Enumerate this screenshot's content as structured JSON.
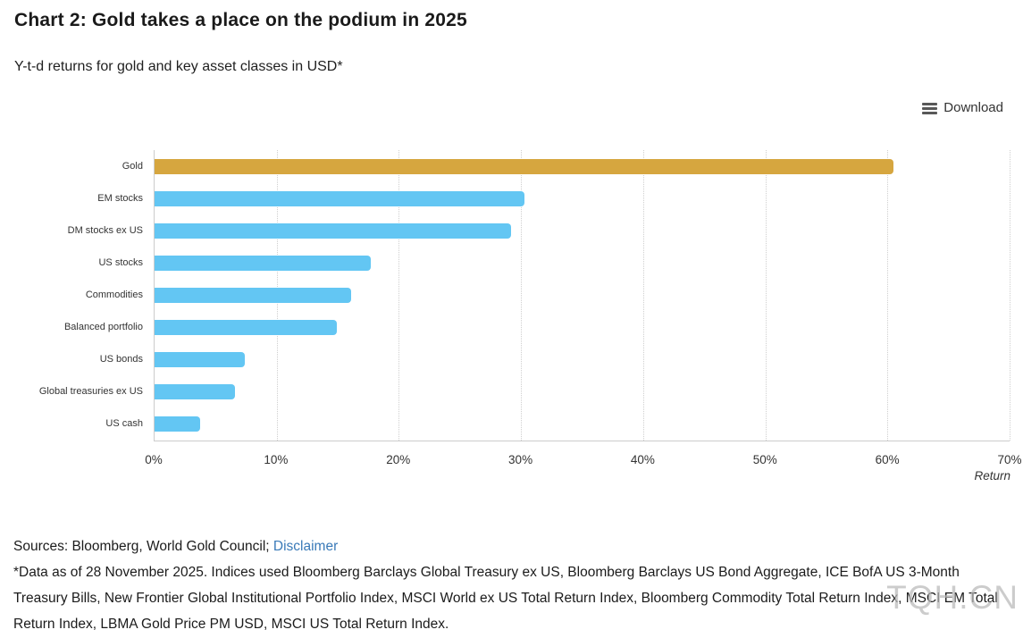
{
  "toolbar": {
    "download_label": "Download"
  },
  "chart_data": {
    "type": "bar",
    "orientation": "horizontal",
    "title": "Chart 2: Gold takes a place on the podium in 2025",
    "subtitle": "Y-t-d returns for gold and key asset classes in USD*",
    "categories": [
      "Gold",
      "EM stocks",
      "DM stocks ex US",
      "US stocks",
      "Commodities",
      "Balanced portfolio",
      "US bonds",
      "Global treasuries ex US",
      "US cash"
    ],
    "values": [
      60.5,
      30.3,
      29.2,
      17.7,
      16.1,
      14.9,
      7.4,
      6.6,
      3.7
    ],
    "unit": "%",
    "bar_colors": [
      "#D6A63F",
      "#63C6F3",
      "#63C6F3",
      "#63C6F3",
      "#63C6F3",
      "#63C6F3",
      "#63C6F3",
      "#63C6F3",
      "#63C6F3"
    ],
    "xlabel": "Return",
    "x_ticks": [
      "0%",
      "10%",
      "20%",
      "30%",
      "40%",
      "50%",
      "60%",
      "70%"
    ],
    "xlim": [
      0,
      70
    ],
    "grid": "vertical-dotted",
    "legend": "none"
  },
  "footer": {
    "sources_prefix": "Sources: Bloomberg, World Gold Council; ",
    "disclaimer_link": "Disclaimer",
    "footnote": "*Data as of 28 November 2025. Indices used Bloomberg Barclays Global Treasury ex US, Bloomberg Barclays US Bond Aggregate, ICE BofA US 3-Month Treasury Bills, New Frontier Global Institutional Portfolio Index, MSCI World ex US Total Return Index, Bloomberg Commodity Total Return Index, MSCI EM Total Return Index, LBMA Gold Price PM USD, MSCI US Total Return Index."
  },
  "watermark": "TQH.CN",
  "colors": {
    "gold": "#D6A63F",
    "blue": "#63C6F3",
    "link": "#3A7AB8",
    "grid": "#CFCFCF",
    "axis": "#CCCCCC",
    "text": "#1B1B1B",
    "watermark": "#B9B9B9"
  }
}
